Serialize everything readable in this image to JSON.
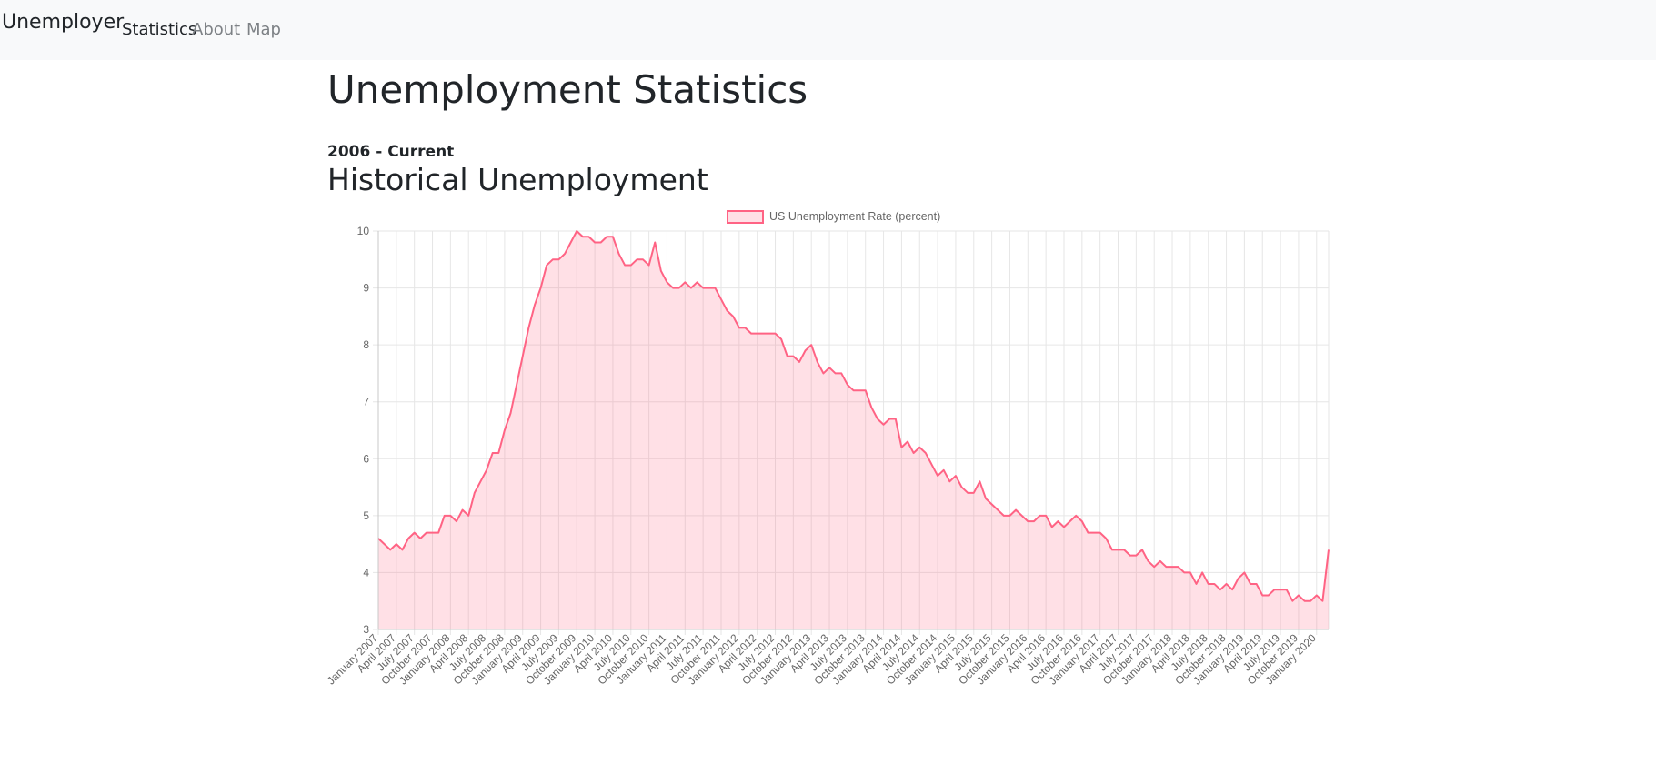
{
  "navbar": {
    "brand": "Unemployer",
    "links": [
      {
        "label": "Statistics",
        "active": true
      },
      {
        "label": "About",
        "active": false
      },
      {
        "label": "Map",
        "active": false
      }
    ]
  },
  "page": {
    "title": "Unemployment Statistics",
    "range": "2006 - Current",
    "section_title": "Historical Unemployment"
  },
  "colors": {
    "line": "#ff6384",
    "fill": "rgba(255,99,132,0.2)",
    "grid": "#e6e6e6",
    "tick_text": "#666666"
  },
  "chart_data": {
    "type": "area",
    "legend": {
      "label": "US Unemployment Rate (percent)",
      "position": "top"
    },
    "grid": true,
    "ylim": [
      3,
      10
    ],
    "y_ticks": [
      3,
      4,
      5,
      6,
      7,
      8,
      9,
      10
    ],
    "x_tick_labels": [
      "January 2007",
      "April 2007",
      "July 2007",
      "October 2007",
      "January 2008",
      "April 2008",
      "July 2008",
      "October 2008",
      "January 2009",
      "April 2009",
      "July 2009",
      "October 2009",
      "January 2010",
      "April 2010",
      "July 2010",
      "October 2010",
      "January 2011",
      "April 2011",
      "July 2011",
      "October 2011",
      "January 2012",
      "April 2012",
      "July 2012",
      "October 2012",
      "January 2013",
      "April 2013",
      "July 2013",
      "October 2013",
      "January 2014",
      "April 2014",
      "July 2014",
      "October 2014",
      "January 2015",
      "April 2015",
      "July 2015",
      "October 2015",
      "January 2016",
      "April 2016",
      "July 2016",
      "October 2016",
      "January 2017",
      "April 2017",
      "July 2017",
      "October 2017",
      "January 2018",
      "April 2018",
      "July 2018",
      "October 2018",
      "January 2019",
      "April 2019",
      "July 2019",
      "October 2019",
      "January 2020"
    ],
    "series": [
      {
        "name": "US Unemployment Rate (percent)",
        "start": "January 2007",
        "frequency": "monthly",
        "values": [
          4.6,
          4.5,
          4.4,
          4.5,
          4.4,
          4.6,
          4.7,
          4.6,
          4.7,
          4.7,
          4.7,
          5.0,
          5.0,
          4.9,
          5.1,
          5.0,
          5.4,
          5.6,
          5.8,
          6.1,
          6.1,
          6.5,
          6.8,
          7.3,
          7.8,
          8.3,
          8.7,
          9.0,
          9.4,
          9.5,
          9.5,
          9.6,
          9.8,
          10.0,
          9.9,
          9.9,
          9.8,
          9.8,
          9.9,
          9.9,
          9.6,
          9.4,
          9.4,
          9.5,
          9.5,
          9.4,
          9.8,
          9.3,
          9.1,
          9.0,
          9.0,
          9.1,
          9.0,
          9.1,
          9.0,
          9.0,
          9.0,
          8.8,
          8.6,
          8.5,
          8.3,
          8.3,
          8.2,
          8.2,
          8.2,
          8.2,
          8.2,
          8.1,
          7.8,
          7.8,
          7.7,
          7.9,
          8.0,
          7.7,
          7.5,
          7.6,
          7.5,
          7.5,
          7.3,
          7.2,
          7.2,
          7.2,
          6.9,
          6.7,
          6.6,
          6.7,
          6.7,
          6.2,
          6.3,
          6.1,
          6.2,
          6.1,
          5.9,
          5.7,
          5.8,
          5.6,
          5.7,
          5.5,
          5.4,
          5.4,
          5.6,
          5.3,
          5.2,
          5.1,
          5.0,
          5.0,
          5.1,
          5.0,
          4.9,
          4.9,
          5.0,
          5.0,
          4.8,
          4.9,
          4.8,
          4.9,
          5.0,
          4.9,
          4.7,
          4.7,
          4.7,
          4.6,
          4.4,
          4.4,
          4.4,
          4.3,
          4.3,
          4.4,
          4.2,
          4.1,
          4.2,
          4.1,
          4.1,
          4.1,
          4.0,
          4.0,
          3.8,
          4.0,
          3.8,
          3.8,
          3.7,
          3.8,
          3.7,
          3.9,
          4.0,
          3.8,
          3.8,
          3.6,
          3.6,
          3.7,
          3.7,
          3.7,
          3.5,
          3.6,
          3.5,
          3.5,
          3.6,
          3.5,
          4.4
        ]
      }
    ]
  }
}
